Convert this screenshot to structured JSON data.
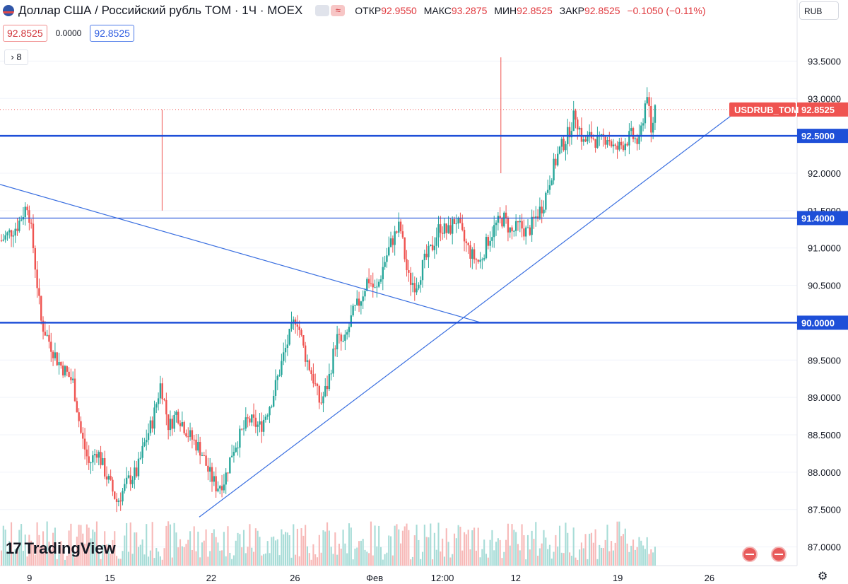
{
  "header": {
    "title": "Доллар США / Российский рубль TOM · 1Ч · MOEX",
    "open_label": "ОТКР",
    "open": "92.9550",
    "high_label": "МАКС",
    "high": "93.2875",
    "low_label": "МИН",
    "low": "92.8525",
    "close_label": "ЗАКР",
    "close": "92.8525",
    "change": "−0.1050 (−0.11%)"
  },
  "price_row": {
    "bid": "92.8525",
    "spread": "0.0000",
    "ask": "92.8525"
  },
  "indicator_count": "8",
  "currency": "RUB",
  "logo": "TradingView",
  "chart_data": {
    "type": "candlestick",
    "symbol_label": "USDRUB_TOM",
    "last_price": 92.8525,
    "ylim": [
      86.75,
      93.75
    ],
    "y_ticks": [
      "87.0000",
      "87.5000",
      "88.0000",
      "88.5000",
      "89.0000",
      "89.5000",
      "90.0000",
      "90.5000",
      "91.0000",
      "91.5000",
      "92.0000",
      "92.5000",
      "93.0000",
      "93.5000"
    ],
    "x_ticks": [
      "9",
      "15",
      "22",
      "26",
      "Фев",
      "12:00",
      "12",
      "19",
      "26"
    ],
    "horizontal_levels": [
      {
        "value": 92.5,
        "label": "92.5000",
        "color": "#1e4fd8",
        "bold": true
      },
      {
        "value": 91.4,
        "label": "91.4000",
        "color": "#1e4fd8",
        "bold": false
      },
      {
        "value": 90.0,
        "label": "90.0000",
        "color": "#1e4fd8",
        "bold": true
      }
    ],
    "trend_lines": [
      {
        "from": [
          0,
          91.85
        ],
        "to": [
          0.533,
          90.0
        ]
      },
      {
        "from": [
          0.25,
          87.4
        ],
        "to": [
          0.86,
          92.88
        ]
      }
    ],
    "path": [
      [
        0,
        91.1
      ],
      [
        0.02,
        91.3
      ],
      [
        0.033,
        91.6
      ],
      [
        0.04,
        91.0
      ],
      [
        0.05,
        90.0
      ],
      [
        0.07,
        89.5
      ],
      [
        0.09,
        89.2
      ],
      [
        0.1,
        88.5
      ],
      [
        0.11,
        88.1
      ],
      [
        0.12,
        88.3
      ],
      [
        0.13,
        88.0
      ],
      [
        0.145,
        87.6
      ],
      [
        0.16,
        87.9
      ],
      [
        0.17,
        88.0
      ],
      [
        0.18,
        88.4
      ],
      [
        0.19,
        88.7
      ],
      [
        0.2,
        89.2
      ],
      [
        0.21,
        88.6
      ],
      [
        0.22,
        88.8
      ],
      [
        0.235,
        88.5
      ],
      [
        0.25,
        88.3
      ],
      [
        0.26,
        88.0
      ],
      [
        0.27,
        87.8
      ],
      [
        0.28,
        87.9
      ],
      [
        0.29,
        88.3
      ],
      [
        0.3,
        88.5
      ],
      [
        0.31,
        88.7
      ],
      [
        0.325,
        88.6
      ],
      [
        0.34,
        89.0
      ],
      [
        0.355,
        89.6
      ],
      [
        0.37,
        90.1
      ],
      [
        0.38,
        89.6
      ],
      [
        0.39,
        89.3
      ],
      [
        0.4,
        88.9
      ],
      [
        0.41,
        89.2
      ],
      [
        0.42,
        89.8
      ],
      [
        0.43,
        89.7
      ],
      [
        0.44,
        90.1
      ],
      [
        0.45,
        90.3
      ],
      [
        0.46,
        90.6
      ],
      [
        0.47,
        90.4
      ],
      [
        0.48,
        90.8
      ],
      [
        0.49,
        91.1
      ],
      [
        0.5,
        91.3
      ],
      [
        0.51,
        90.6
      ],
      [
        0.52,
        90.5
      ],
      [
        0.53,
        90.8
      ],
      [
        0.54,
        91.0
      ],
      [
        0.55,
        91.3
      ],
      [
        0.56,
        91.2
      ],
      [
        0.57,
        91.4
      ],
      [
        0.58,
        91.1
      ],
      [
        0.59,
        90.9
      ],
      [
        0.6,
        90.8
      ],
      [
        0.61,
        91.1
      ],
      [
        0.62,
        91.3
      ],
      [
        0.63,
        91.4
      ],
      [
        0.64,
        91.2
      ],
      [
        0.65,
        91.3
      ],
      [
        0.66,
        91.2
      ],
      [
        0.67,
        91.4
      ],
      [
        0.68,
        91.6
      ],
      [
        0.69,
        92.0
      ],
      [
        0.7,
        92.3
      ],
      [
        0.71,
        92.5
      ],
      [
        0.72,
        92.8
      ],
      [
        0.73,
        92.4
      ],
      [
        0.74,
        92.5
      ],
      [
        0.75,
        92.4
      ],
      [
        0.76,
        92.5
      ],
      [
        0.77,
        92.3
      ],
      [
        0.78,
        92.4
      ],
      [
        0.79,
        92.5
      ],
      [
        0.8,
        92.4
      ],
      [
        0.81,
        93.1
      ],
      [
        0.815,
        92.5
      ],
      [
        0.82,
        92.9
      ]
    ],
    "spikes": [
      {
        "x": 0.175,
        "high": 92.85,
        "low": 91.5
      },
      {
        "x": 0.6,
        "high": 93.55,
        "low": 92.0
      }
    ]
  }
}
